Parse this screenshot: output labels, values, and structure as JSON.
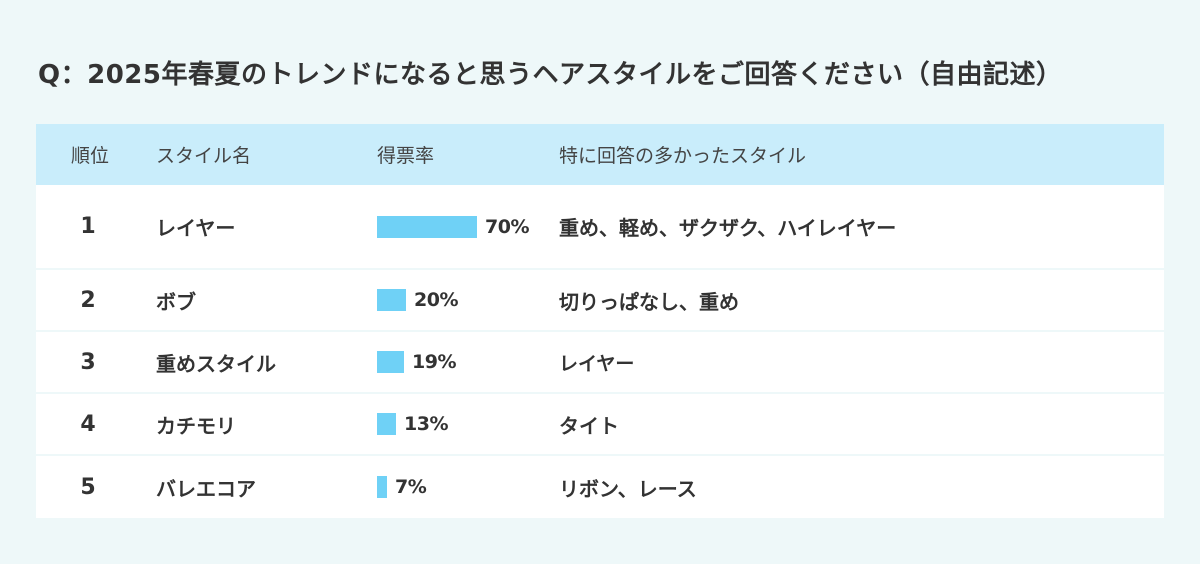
{
  "question": "Q：2025年春夏のトレンドになると思うヘアスタイルをご回答ください（自由記述）",
  "headers": {
    "rank": "順位",
    "style": "スタイル名",
    "rate": "得票率",
    "popular": "特に回答の多かったスタイル"
  },
  "colors": {
    "bar": "#6fd1f6",
    "header_bg": "#c9edfb",
    "page_bg": "#eef8f9"
  },
  "rows": [
    {
      "rank": "1",
      "style": "レイヤー",
      "rate_label": "70%",
      "popular": "重め、軽め、ザクザク、ハイレイヤー"
    },
    {
      "rank": "2",
      "style": "ボブ",
      "rate_label": "20%",
      "popular": "切りっぱなし、重め"
    },
    {
      "rank": "3",
      "style": "重めスタイル",
      "rate_label": "19%",
      "popular": "レイヤー"
    },
    {
      "rank": "4",
      "style": "カチモリ",
      "rate_label": "13%",
      "popular": "タイト"
    },
    {
      "rank": "5",
      "style": "バレエコア",
      "rate_label": "7%",
      "popular": "リボン、レース"
    }
  ],
  "chart_data": {
    "type": "bar",
    "categories": [
      "レイヤー",
      "ボブ",
      "重めスタイル",
      "カチモリ",
      "バレエコア"
    ],
    "values": [
      70,
      20,
      19,
      13,
      7
    ],
    "ylabel": "得票率"
  }
}
